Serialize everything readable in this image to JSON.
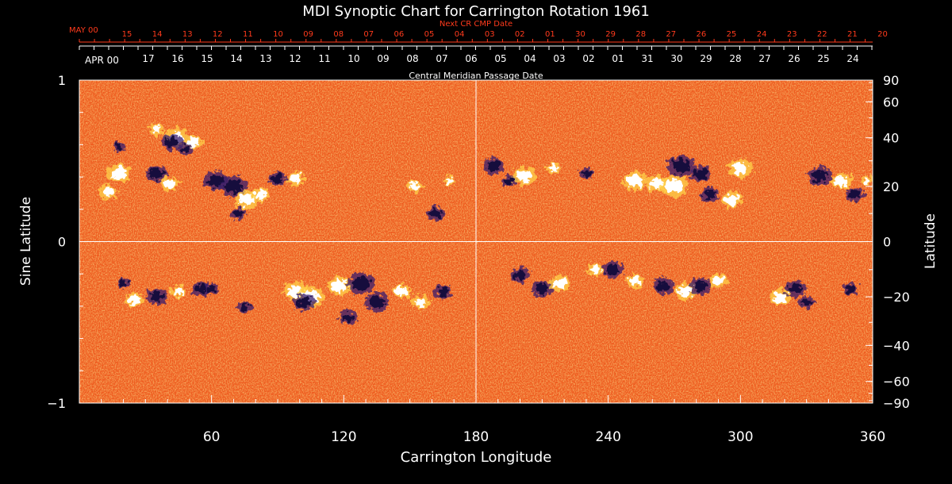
{
  "chart_data": {
    "type": "heatmap",
    "title": "MDI Synoptic Chart for Carrington Rotation 1961",
    "top_axis": {
      "label": "Next CR CMP Date",
      "start_label": "MAY 00",
      "ticks": [
        "15",
        "14",
        "13",
        "12",
        "11",
        "10",
        "09",
        "08",
        "07",
        "06",
        "05",
        "04",
        "03",
        "02",
        "01",
        "30",
        "29",
        "28",
        "27",
        "26",
        "25",
        "24",
        "23",
        "22",
        "21",
        "20"
      ]
    },
    "cmp_axis": {
      "label": "Central Meridian Passage Date",
      "start_label": "APR 00",
      "ticks": [
        "17",
        "16",
        "15",
        "14",
        "13",
        "12",
        "11",
        "10",
        "09",
        "08",
        "07",
        "06",
        "05",
        "04",
        "03",
        "02",
        "01",
        "31",
        "30",
        "29",
        "28",
        "27",
        "26",
        "25",
        "24"
      ]
    },
    "x_axis": {
      "label": "Carrington Longitude",
      "range": [
        0,
        360
      ],
      "ticks": [
        60,
        120,
        180,
        240,
        300,
        360
      ]
    },
    "y_axis_left": {
      "label": "Sine Latitude",
      "range": [
        -1,
        1
      ],
      "ticks": [
        {
          "value": 1,
          "label": "1"
        },
        {
          "value": 0,
          "label": "0"
        },
        {
          "value": -1,
          "label": "−1"
        }
      ]
    },
    "y_axis_right": {
      "label": "Latitude",
      "ticks": [
        {
          "value": 90,
          "label": "90"
        },
        {
          "value": 60,
          "label": "60"
        },
        {
          "value": 40,
          "label": "40"
        },
        {
          "value": 20,
          "label": "20"
        },
        {
          "value": 0,
          "label": "0"
        },
        {
          "value": -20,
          "label": "−20"
        },
        {
          "value": -40,
          "label": "−40"
        },
        {
          "value": -60,
          "label": "−60"
        },
        {
          "value": -90,
          "label": "−90"
        }
      ]
    },
    "reference_lines": {
      "longitude": 180,
      "sine_latitude": 0
    },
    "colormap": {
      "background": "#ee5a1e",
      "positive": "#ffffff",
      "negative": "#14103c"
    },
    "active_regions": [
      {
        "lon": 18,
        "lat": 25,
        "polarity": 1,
        "size": 8
      },
      {
        "lon": 13,
        "lat": 18,
        "polarity": 1,
        "size": 6
      },
      {
        "lon": 18,
        "lat": 36,
        "polarity": -1,
        "size": 4
      },
      {
        "lon": 35,
        "lat": 44,
        "polarity": 1,
        "size": 5
      },
      {
        "lon": 44,
        "lat": 40,
        "polarity": 1,
        "size": 8
      },
      {
        "lon": 52,
        "lat": 38,
        "polarity": 1,
        "size": 6
      },
      {
        "lon": 42,
        "lat": 38,
        "polarity": -1,
        "size": 7
      },
      {
        "lon": 48,
        "lat": 35,
        "polarity": -1,
        "size": 5
      },
      {
        "lon": 35,
        "lat": 25,
        "polarity": -1,
        "size": 7
      },
      {
        "lon": 41,
        "lat": 21,
        "polarity": 1,
        "size": 6
      },
      {
        "lon": 62,
        "lat": 22,
        "polarity": -1,
        "size": 8
      },
      {
        "lon": 70,
        "lat": 20,
        "polarity": -1,
        "size": 9
      },
      {
        "lon": 76,
        "lat": 15,
        "polarity": 1,
        "size": 8
      },
      {
        "lon": 72,
        "lat": 10,
        "polarity": -1,
        "size": 5
      },
      {
        "lon": 82,
        "lat": 17,
        "polarity": 1,
        "size": 6
      },
      {
        "lon": 90,
        "lat": 23,
        "polarity": -1,
        "size": 6
      },
      {
        "lon": 98,
        "lat": 23,
        "polarity": 1,
        "size": 6
      },
      {
        "lon": 152,
        "lat": 20,
        "polarity": 1,
        "size": 5
      },
      {
        "lon": 162,
        "lat": 10,
        "polarity": -1,
        "size": 6
      },
      {
        "lon": 168,
        "lat": 22,
        "polarity": 1,
        "size": 4
      },
      {
        "lon": 188,
        "lat": 28,
        "polarity": -1,
        "size": 7
      },
      {
        "lon": 195,
        "lat": 22,
        "polarity": -1,
        "size": 5
      },
      {
        "lon": 202,
        "lat": 24,
        "polarity": 1,
        "size": 8
      },
      {
        "lon": 215,
        "lat": 27,
        "polarity": 1,
        "size": 5
      },
      {
        "lon": 230,
        "lat": 25,
        "polarity": -1,
        "size": 5
      },
      {
        "lon": 252,
        "lat": 22,
        "polarity": 1,
        "size": 8
      },
      {
        "lon": 262,
        "lat": 21,
        "polarity": 1,
        "size": 7
      },
      {
        "lon": 270,
        "lat": 20,
        "polarity": 1,
        "size": 9
      },
      {
        "lon": 273,
        "lat": 28,
        "polarity": -1,
        "size": 9
      },
      {
        "lon": 282,
        "lat": 25,
        "polarity": -1,
        "size": 7
      },
      {
        "lon": 286,
        "lat": 17,
        "polarity": -1,
        "size": 6
      },
      {
        "lon": 296,
        "lat": 15,
        "polarity": 1,
        "size": 7
      },
      {
        "lon": 300,
        "lat": 27,
        "polarity": 1,
        "size": 8
      },
      {
        "lon": 336,
        "lat": 24,
        "polarity": -1,
        "size": 8
      },
      {
        "lon": 346,
        "lat": 22,
        "polarity": 1,
        "size": 7
      },
      {
        "lon": 352,
        "lat": 17,
        "polarity": -1,
        "size": 6
      },
      {
        "lon": 358,
        "lat": 22,
        "polarity": 1,
        "size": 4
      },
      {
        "lon": 20,
        "lat": -15,
        "polarity": -1,
        "size": 4
      },
      {
        "lon": 25,
        "lat": -21,
        "polarity": 1,
        "size": 6
      },
      {
        "lon": 35,
        "lat": -20,
        "polarity": -1,
        "size": 7
      },
      {
        "lon": 45,
        "lat": -18,
        "polarity": 1,
        "size": 5
      },
      {
        "lon": 55,
        "lat": -17,
        "polarity": -1,
        "size": 6
      },
      {
        "lon": 60,
        "lat": -17,
        "polarity": -1,
        "size": 5
      },
      {
        "lon": 75,
        "lat": -24,
        "polarity": -1,
        "size": 5
      },
      {
        "lon": 98,
        "lat": -18,
        "polarity": 1,
        "size": 8
      },
      {
        "lon": 105,
        "lat": -20,
        "polarity": 1,
        "size": 9
      },
      {
        "lon": 118,
        "lat": -16,
        "polarity": 1,
        "size": 8
      },
      {
        "lon": 102,
        "lat": -22,
        "polarity": -1,
        "size": 7
      },
      {
        "lon": 128,
        "lat": -15,
        "polarity": -1,
        "size": 9
      },
      {
        "lon": 135,
        "lat": -22,
        "polarity": -1,
        "size": 8
      },
      {
        "lon": 122,
        "lat": -28,
        "polarity": -1,
        "size": 6
      },
      {
        "lon": 146,
        "lat": -18,
        "polarity": 1,
        "size": 6
      },
      {
        "lon": 155,
        "lat": -22,
        "polarity": 1,
        "size": 6
      },
      {
        "lon": 165,
        "lat": -18,
        "polarity": -1,
        "size": 6
      },
      {
        "lon": 200,
        "lat": -12,
        "polarity": -1,
        "size": 6
      },
      {
        "lon": 210,
        "lat": -17,
        "polarity": -1,
        "size": 7
      },
      {
        "lon": 218,
        "lat": -15,
        "polarity": 1,
        "size": 7
      },
      {
        "lon": 234,
        "lat": -10,
        "polarity": 1,
        "size": 5
      },
      {
        "lon": 242,
        "lat": -10,
        "polarity": -1,
        "size": 7
      },
      {
        "lon": 252,
        "lat": -14,
        "polarity": 1,
        "size": 6
      },
      {
        "lon": 265,
        "lat": -16,
        "polarity": -1,
        "size": 7
      },
      {
        "lon": 275,
        "lat": -18,
        "polarity": 1,
        "size": 7
      },
      {
        "lon": 282,
        "lat": -16,
        "polarity": -1,
        "size": 7
      },
      {
        "lon": 290,
        "lat": -14,
        "polarity": 1,
        "size": 6
      },
      {
        "lon": 318,
        "lat": -20,
        "polarity": 1,
        "size": 7
      },
      {
        "lon": 325,
        "lat": -17,
        "polarity": -1,
        "size": 7
      },
      {
        "lon": 330,
        "lat": -22,
        "polarity": -1,
        "size": 5
      },
      {
        "lon": 350,
        "lat": -17,
        "polarity": -1,
        "size": 5
      }
    ]
  }
}
